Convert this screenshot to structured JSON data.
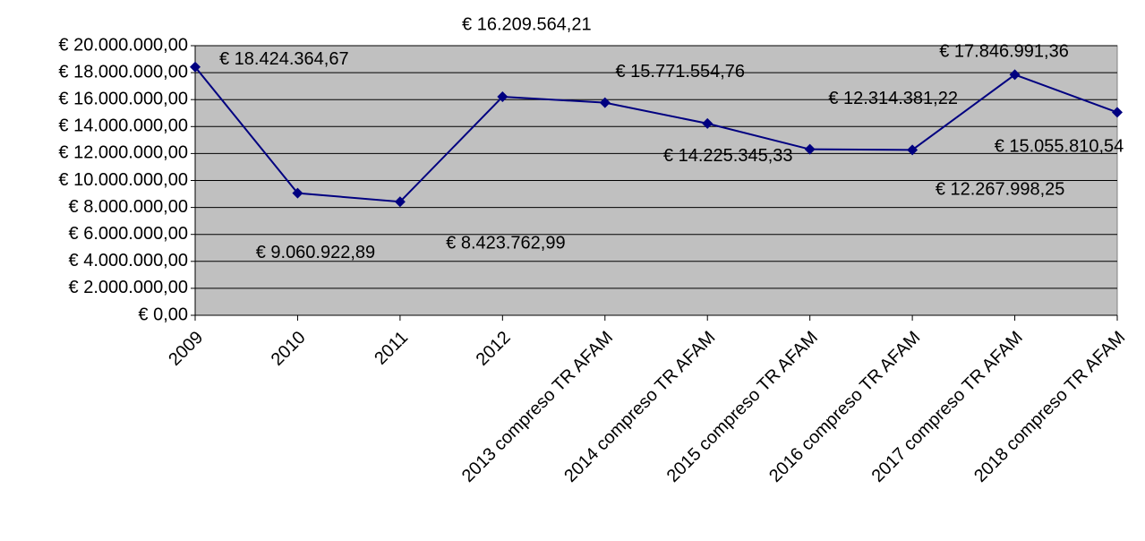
{
  "chart_data": {
    "type": "line",
    "categories": [
      "2009",
      "2010",
      "2011",
      "2012",
      "2013 compreso TR AFAM",
      "2014 compreso TR AFAM",
      "2015 compreso TR AFAM",
      "2016 compreso TR AFAM",
      "2017 compreso TR AFAM",
      "2018 compreso TR AFAM"
    ],
    "series": [
      {
        "color": "#000080",
        "values": [
          18424364.67,
          9060922.89,
          8423762.99,
          16209564.21,
          15771554.76,
          14225345.33,
          12314381.22,
          12267998.25,
          17846991.36,
          15055810.54
        ],
        "value_labels": [
          "€ 18.424.364,67",
          "€ 9.060.922,89",
          "€ 8.423.762,99",
          "€ 16.209.564,21",
          "€ 15.771.554,76",
          "€ 14.225.345,33",
          "€ 12.314.381,22",
          "€ 12.267.998,25",
          "€ 17.846.991,36",
          "€ 15.055.810,54"
        ]
      }
    ],
    "ylim": [
      0,
      20000000
    ],
    "yticks": [
      {
        "value": 0,
        "label": "€ 0,00"
      },
      {
        "value": 2000000,
        "label": "€ 2.000.000,00"
      },
      {
        "value": 4000000,
        "label": "€ 4.000.000,00"
      },
      {
        "value": 6000000,
        "label": "€ 6.000.000,00"
      },
      {
        "value": 8000000,
        "label": "€ 8.000.000,00"
      },
      {
        "value": 10000000,
        "label": "€ 10.000.000,00"
      },
      {
        "value": 12000000,
        "label": "€ 12.000.000,00"
      },
      {
        "value": 14000000,
        "label": "€ 14.000.000,00"
      },
      {
        "value": 16000000,
        "label": "€ 16.000.000,00"
      },
      {
        "value": 18000000,
        "label": "€ 18.000.000,00"
      },
      {
        "value": 20000000,
        "label": "€ 20.000.000,00"
      }
    ],
    "grid": true,
    "plot_background": "#c0c0c0"
  }
}
